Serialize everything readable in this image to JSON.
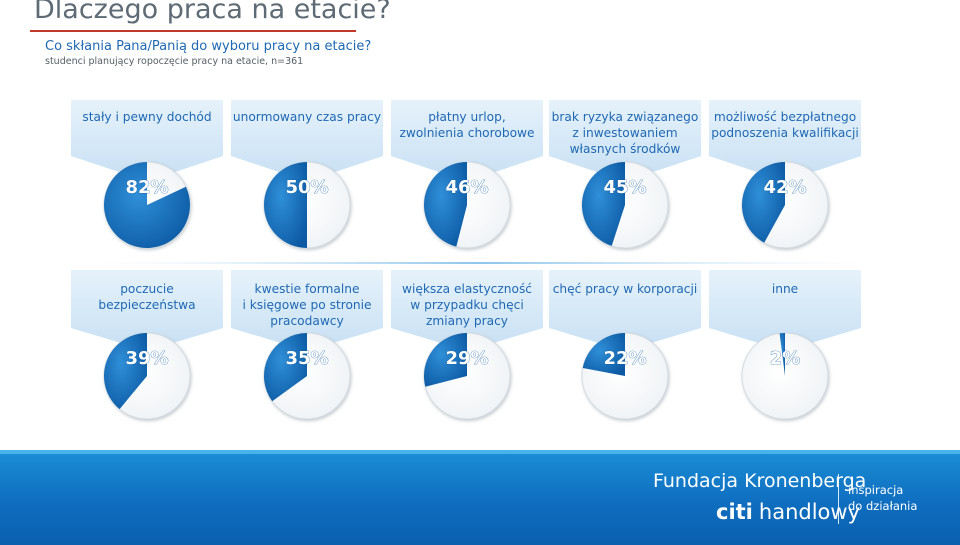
{
  "header": {
    "title": "Dlaczego praca na etacie?",
    "question": "Co skłania Pana/Panią do wyboru pracy na etacie?",
    "note": "studenci planujący ropoczęcie pracy na etacie, n=361"
  },
  "chart_data": {
    "type": "pie",
    "unit": "%",
    "rows": [
      [
        {
          "label": [
            "stały i pewny dochód"
          ],
          "value": 82,
          "display": "82%"
        },
        {
          "label": [
            "unormowany czas pracy"
          ],
          "value": 50,
          "display": "50%"
        },
        {
          "label": [
            "płatny urlop,",
            "zwolnienia chorobowe"
          ],
          "value": 46,
          "display": "46%"
        },
        {
          "label": [
            "brak ryzyka związanego",
            "z inwestowaniem",
            "własnych środków"
          ],
          "value": 45,
          "display": "45%"
        },
        {
          "label": [
            "możliwość bezpłatnego",
            "podnoszenia kwalifikacji"
          ],
          "value": 42,
          "display": "42%"
        }
      ],
      [
        {
          "label": [
            "poczucie",
            "bezpieczeństwa"
          ],
          "value": 39,
          "display": "39%"
        },
        {
          "label": [
            "kwestie formalne",
            "i księgowe po stronie",
            "pracodawcy"
          ],
          "value": 35,
          "display": "35%"
        },
        {
          "label": [
            "większa elastyczność",
            "w przypadku chęci",
            "zmiany pracy"
          ],
          "value": 29,
          "display": "29%"
        },
        {
          "label": [
            "chęć pracy w korporacji"
          ],
          "value": 22,
          "display": "22%"
        },
        {
          "label": [
            "inne"
          ],
          "value": 2,
          "display": "2%"
        }
      ]
    ],
    "colors": {
      "fill": "#1269b3",
      "fill_light": "#2f8fd8",
      "remainder": "#ffffff",
      "label_text": "#1f69b3",
      "value_text": "#ffffff",
      "panel": "#d6e9f8"
    }
  },
  "footer": {
    "brand": "Fundacja Kronenberga",
    "bank_prefix": "citi",
    "bank_name": "handlowy",
    "tagline_1": "inspiracja",
    "tagline_2": "do działania"
  }
}
